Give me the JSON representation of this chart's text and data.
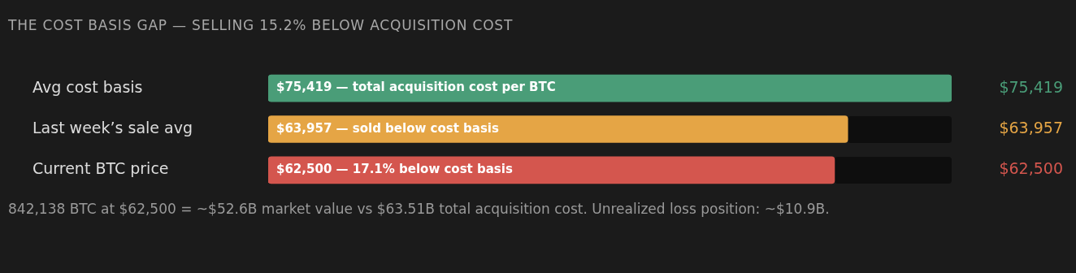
{
  "chart_data": {
    "type": "bar",
    "orientation": "horizontal",
    "title": "THE COST BASIS GAP — SELLING 15.2% BELOW ACQUISITION COST",
    "categories": [
      "Avg cost basis",
      "Last week’s sale avg",
      "Current BTC price"
    ],
    "values": [
      75419,
      63957,
      62500
    ],
    "colors": [
      "#4a9d78",
      "#e5a545",
      "#d4564e"
    ],
    "value_labels": [
      "$75,419",
      "$63,957",
      "$62,500"
    ],
    "xlim": [
      0,
      75419
    ],
    "tick_labels": "y",
    "annotations": [
      {
        "text": "$75,419 — total acquisition cost per BTC",
        "y": "Avg cost basis"
      },
      {
        "text": "$63,957 — sold below cost basis",
        "y": "Last week’s sale avg"
      },
      {
        "text": "$62,500 — 17.1% below cost basis",
        "y": "Current BTC price"
      },
      "842,138 BTC at $62,500 = ~$52.6B market value vs $63.51B total acquisition cost. Unrealized loss position: ~$10.9B."
    ]
  }
}
